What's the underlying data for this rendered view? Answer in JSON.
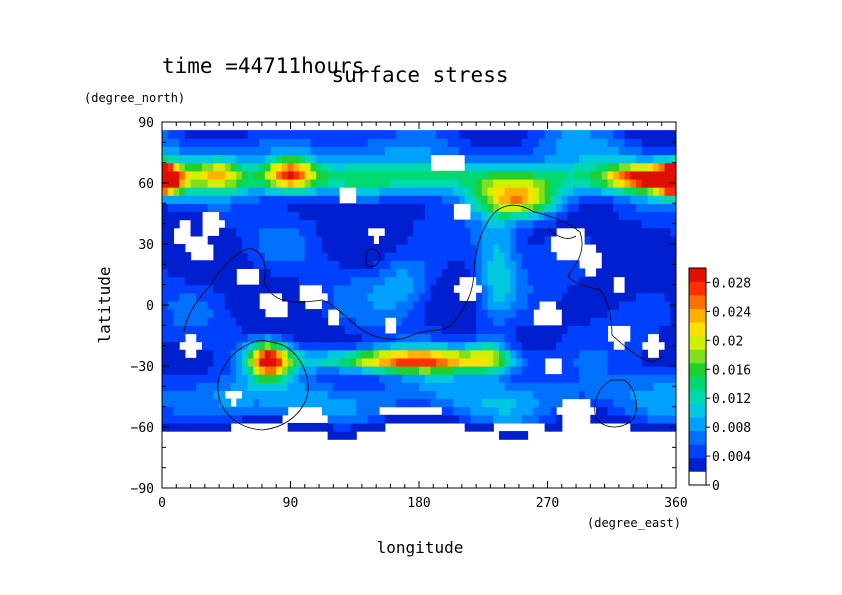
{
  "chart_data": {
    "type": "heatmap",
    "title": "surface stress",
    "subtitle": "time =44711hours",
    "xlabel": "longitude",
    "ylabel": "latitude",
    "x_units": "(degree_east)",
    "y_units": "(degree_north)",
    "xlim": [
      0,
      360
    ],
    "ylim": [
      -90,
      90
    ],
    "x_ticks": [
      0,
      90,
      180,
      270,
      360
    ],
    "y_ticks": [
      -90,
      -60,
      -30,
      0,
      30,
      60,
      90
    ],
    "x_tick_labels": [
      "0",
      "90",
      "180",
      "270",
      "360"
    ],
    "y_tick_labels": [
      "−90",
      "−60",
      "−30",
      "0",
      "30",
      "60",
      "90"
    ],
    "colorbar": {
      "min": 0,
      "max": 0.03,
      "tick_values": [
        0,
        0.004,
        0.008,
        0.012,
        0.016,
        0.02,
        0.024,
        0.028
      ],
      "tick_labels": [
        "0",
        "0.004",
        "0.008",
        "0.012",
        "0.016",
        "0.02",
        "0.024",
        "0.028"
      ],
      "colors": [
        "#ffffff",
        "#0020d0",
        "#0040ff",
        "#0070ff",
        "#00a0ff",
        "#00c8e0",
        "#00d8b0",
        "#00d870",
        "#20d030",
        "#80e020",
        "#d0f000",
        "#ffe000",
        "#ffb000",
        "#ff7000",
        "#ff3000",
        "#e01000"
      ]
    },
    "grid": false,
    "legend": "colorbar right",
    "features": [
      {
        "name": "subpolar-band-north",
        "lon": [
          0,
          360
        ],
        "lat": [
          50,
          72
        ],
        "value": 0.012
      },
      {
        "name": "high-arctic-cap",
        "lon": [
          0,
          360
        ],
        "lat": [
          72,
          85
        ],
        "value": 0.005
      },
      {
        "name": "jet-south-central",
        "lon": [
          100,
          230
        ],
        "lat": [
          -33,
          -22
        ],
        "value": 0.025
      },
      {
        "name": "jet-south-west",
        "lon": [
          55,
          95
        ],
        "lat": [
          -35,
          -18
        ],
        "value": 0.026
      },
      {
        "name": "north-max-75E",
        "lon": [
          65,
          110
        ],
        "lat": [
          58,
          75
        ],
        "value": 0.024
      },
      {
        "name": "north-max-0E",
        "lon": [
          0,
          15
        ],
        "lat": [
          55,
          70
        ],
        "value": 0.026
      },
      {
        "name": "north-max-255E",
        "lon": [
          225,
          285
        ],
        "lat": [
          45,
          62
        ],
        "value": 0.024
      },
      {
        "name": "north-max-340E",
        "lon": [
          310,
          360
        ],
        "lat": [
          55,
          70
        ],
        "value": 0.024
      },
      {
        "name": "tropics",
        "lon": [
          0,
          360
        ],
        "lat": [
          -20,
          45
        ],
        "value": 0.004
      }
    ]
  }
}
